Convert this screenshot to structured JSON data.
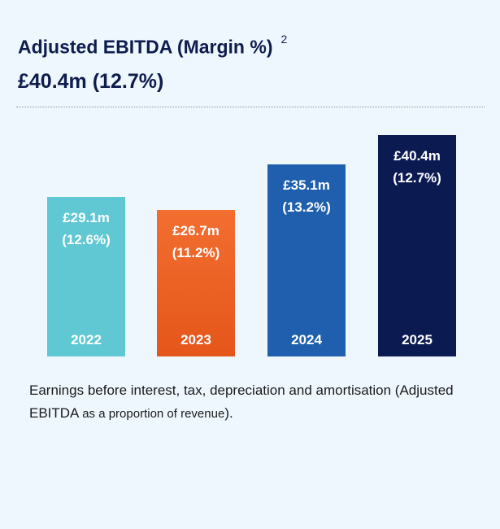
{
  "header": {
    "title": "Adjusted EBITDA (Margin %)",
    "footnote_ref": "2",
    "headline": "£40.4m (12.7%)"
  },
  "chart_data": {
    "type": "bar",
    "categories": [
      "2022",
      "2023",
      "2024",
      "2025"
    ],
    "series": [
      {
        "values": [
          29.1,
          26.7,
          35.1,
          40.4
        ],
        "margins": [
          "12.6%",
          "11.2%",
          "13.2%",
          "12.7%"
        ]
      }
    ],
    "value_labels": [
      "£29.1m",
      "£26.7m",
      "£35.1m",
      "£40.4m"
    ],
    "margin_labels": [
      "(12.6%)",
      "(11.2%)",
      "(13.2%)",
      "(12.7%)"
    ],
    "colors": [
      "#5fc8d3",
      "#ee6326",
      "#1f5fad",
      "#0c1a52"
    ],
    "ylim": [
      0,
      40.4
    ],
    "grid": false,
    "axes_visible": false
  },
  "note": {
    "main": "Earnings before interest, tax, depreciation and amortisation (Adjusted EBITDA ",
    "small": "as a proportion of revenue",
    "end": ")."
  }
}
